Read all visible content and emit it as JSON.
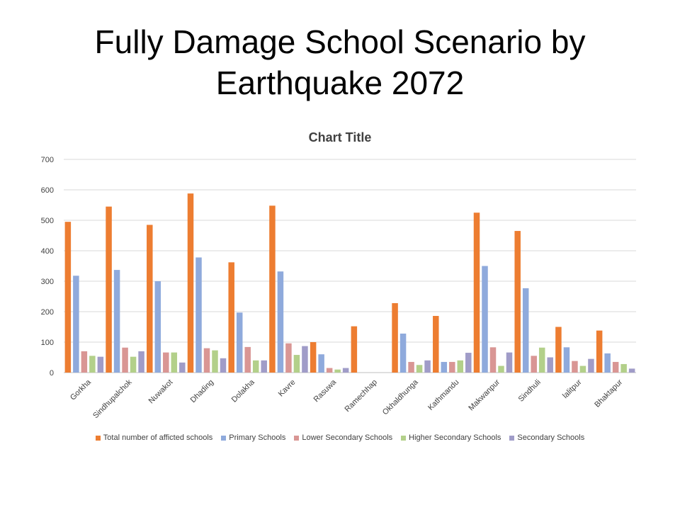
{
  "slide": {
    "title_line1": "Fully Damage School Scenario by",
    "title_line2": "Earthquake 2072"
  },
  "chart_data": {
    "type": "bar",
    "title": "Chart Title",
    "xlabel": "",
    "ylabel": "",
    "ylim": [
      0,
      700
    ],
    "yticks": [
      0,
      100,
      200,
      300,
      400,
      500,
      600,
      700
    ],
    "grid": true,
    "legend_position": "bottom",
    "categories": [
      "Gorkha",
      "Sindhupalchok",
      "Nuwakot",
      "Dhading",
      "Dolakha",
      "Kavre",
      "Rasuwa",
      "Ramechhap",
      "Okhaldhunga",
      "Kathmandu",
      "Makwanpur",
      "Sindhuli",
      "lalitpur",
      "Bhaktapur"
    ],
    "series": [
      {
        "name": "Total number of afficted schools",
        "color": "#ED7D31",
        "values": [
          495,
          545,
          485,
          588,
          362,
          548,
          100,
          152,
          228,
          186,
          525,
          465,
          150,
          138
        ]
      },
      {
        "name": "Primary Schools",
        "color": "#8FAADC",
        "values": [
          318,
          337,
          300,
          378,
          197,
          332,
          60,
          0,
          128,
          35,
          350,
          277,
          83,
          63
        ]
      },
      {
        "name": "Lower Secondary Schools",
        "color": "#D99694",
        "values": [
          70,
          82,
          66,
          80,
          84,
          96,
          15,
          0,
          35,
          35,
          83,
          55,
          38,
          35
        ]
      },
      {
        "name": "Higher Secondary Schools",
        "color": "#B3D08A",
        "values": [
          55,
          52,
          66,
          73,
          40,
          58,
          10,
          0,
          25,
          40,
          22,
          82,
          22,
          28
        ]
      },
      {
        "name": "Secondary Schools",
        "color": "#A09CC8",
        "values": [
          52,
          70,
          33,
          47,
          40,
          87,
          15,
          0,
          40,
          65,
          66,
          50,
          45,
          13
        ]
      }
    ]
  }
}
